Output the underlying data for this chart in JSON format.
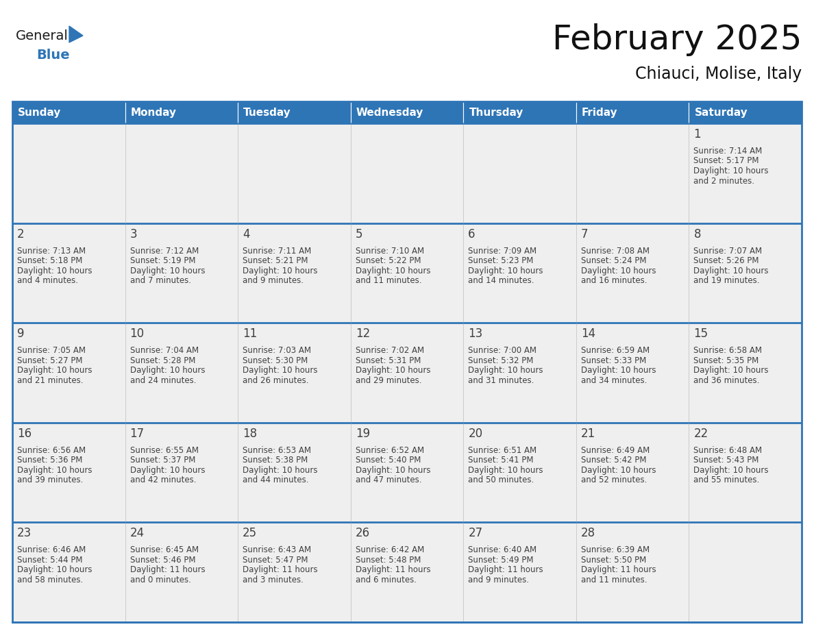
{
  "title": "February 2025",
  "subtitle": "Chiauci, Molise, Italy",
  "days_of_week": [
    "Sunday",
    "Monday",
    "Tuesday",
    "Wednesday",
    "Thursday",
    "Friday",
    "Saturday"
  ],
  "header_bg": "#2E75B6",
  "header_text": "#FFFFFF",
  "cell_bg": "#EFEFEF",
  "line_color": "#2E75B6",
  "text_color": "#404040",
  "day_num_color": "#404040",
  "logo_general_color": "#1a1a1a",
  "logo_blue_color": "#2E75B6",
  "calendar_data": [
    [
      null,
      null,
      null,
      null,
      null,
      null,
      1
    ],
    [
      2,
      3,
      4,
      5,
      6,
      7,
      8
    ],
    [
      9,
      10,
      11,
      12,
      13,
      14,
      15
    ],
    [
      16,
      17,
      18,
      19,
      20,
      21,
      22
    ],
    [
      23,
      24,
      25,
      26,
      27,
      28,
      null
    ]
  ],
  "cell_info": {
    "1": {
      "sunrise": "7:14 AM",
      "sunset": "5:17 PM",
      "daylight_h": "10 hours",
      "daylight_m": "and 2 minutes."
    },
    "2": {
      "sunrise": "7:13 AM",
      "sunset": "5:18 PM",
      "daylight_h": "10 hours",
      "daylight_m": "and 4 minutes."
    },
    "3": {
      "sunrise": "7:12 AM",
      "sunset": "5:19 PM",
      "daylight_h": "10 hours",
      "daylight_m": "and 7 minutes."
    },
    "4": {
      "sunrise": "7:11 AM",
      "sunset": "5:21 PM",
      "daylight_h": "10 hours",
      "daylight_m": "and 9 minutes."
    },
    "5": {
      "sunrise": "7:10 AM",
      "sunset": "5:22 PM",
      "daylight_h": "10 hours",
      "daylight_m": "and 11 minutes."
    },
    "6": {
      "sunrise": "7:09 AM",
      "sunset": "5:23 PM",
      "daylight_h": "10 hours",
      "daylight_m": "and 14 minutes."
    },
    "7": {
      "sunrise": "7:08 AM",
      "sunset": "5:24 PM",
      "daylight_h": "10 hours",
      "daylight_m": "and 16 minutes."
    },
    "8": {
      "sunrise": "7:07 AM",
      "sunset": "5:26 PM",
      "daylight_h": "10 hours",
      "daylight_m": "and 19 minutes."
    },
    "9": {
      "sunrise": "7:05 AM",
      "sunset": "5:27 PM",
      "daylight_h": "10 hours",
      "daylight_m": "and 21 minutes."
    },
    "10": {
      "sunrise": "7:04 AM",
      "sunset": "5:28 PM",
      "daylight_h": "10 hours",
      "daylight_m": "and 24 minutes."
    },
    "11": {
      "sunrise": "7:03 AM",
      "sunset": "5:30 PM",
      "daylight_h": "10 hours",
      "daylight_m": "and 26 minutes."
    },
    "12": {
      "sunrise": "7:02 AM",
      "sunset": "5:31 PM",
      "daylight_h": "10 hours",
      "daylight_m": "and 29 minutes."
    },
    "13": {
      "sunrise": "7:00 AM",
      "sunset": "5:32 PM",
      "daylight_h": "10 hours",
      "daylight_m": "and 31 minutes."
    },
    "14": {
      "sunrise": "6:59 AM",
      "sunset": "5:33 PM",
      "daylight_h": "10 hours",
      "daylight_m": "and 34 minutes."
    },
    "15": {
      "sunrise": "6:58 AM",
      "sunset": "5:35 PM",
      "daylight_h": "10 hours",
      "daylight_m": "and 36 minutes."
    },
    "16": {
      "sunrise": "6:56 AM",
      "sunset": "5:36 PM",
      "daylight_h": "10 hours",
      "daylight_m": "and 39 minutes."
    },
    "17": {
      "sunrise": "6:55 AM",
      "sunset": "5:37 PM",
      "daylight_h": "10 hours",
      "daylight_m": "and 42 minutes."
    },
    "18": {
      "sunrise": "6:53 AM",
      "sunset": "5:38 PM",
      "daylight_h": "10 hours",
      "daylight_m": "and 44 minutes."
    },
    "19": {
      "sunrise": "6:52 AM",
      "sunset": "5:40 PM",
      "daylight_h": "10 hours",
      "daylight_m": "and 47 minutes."
    },
    "20": {
      "sunrise": "6:51 AM",
      "sunset": "5:41 PM",
      "daylight_h": "10 hours",
      "daylight_m": "and 50 minutes."
    },
    "21": {
      "sunrise": "6:49 AM",
      "sunset": "5:42 PM",
      "daylight_h": "10 hours",
      "daylight_m": "and 52 minutes."
    },
    "22": {
      "sunrise": "6:48 AM",
      "sunset": "5:43 PM",
      "daylight_h": "10 hours",
      "daylight_m": "and 55 minutes."
    },
    "23": {
      "sunrise": "6:46 AM",
      "sunset": "5:44 PM",
      "daylight_h": "10 hours",
      "daylight_m": "and 58 minutes."
    },
    "24": {
      "sunrise": "6:45 AM",
      "sunset": "5:46 PM",
      "daylight_h": "11 hours",
      "daylight_m": "and 0 minutes."
    },
    "25": {
      "sunrise": "6:43 AM",
      "sunset": "5:47 PM",
      "daylight_h": "11 hours",
      "daylight_m": "and 3 minutes."
    },
    "26": {
      "sunrise": "6:42 AM",
      "sunset": "5:48 PM",
      "daylight_h": "11 hours",
      "daylight_m": "and 6 minutes."
    },
    "27": {
      "sunrise": "6:40 AM",
      "sunset": "5:49 PM",
      "daylight_h": "11 hours",
      "daylight_m": "and 9 minutes."
    },
    "28": {
      "sunrise": "6:39 AM",
      "sunset": "5:50 PM",
      "daylight_h": "11 hours",
      "daylight_m": "and 11 minutes."
    }
  },
  "fig_width": 11.88,
  "fig_height": 9.18,
  "dpi": 100
}
